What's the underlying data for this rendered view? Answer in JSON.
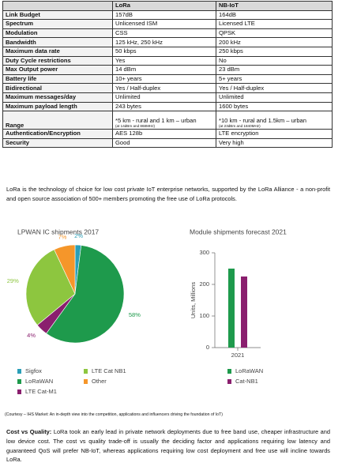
{
  "table": {
    "header": [
      "",
      "LoRa",
      "NB-IoT"
    ],
    "rows": [
      [
        "Link Budget",
        "157dB",
        "164dB"
      ],
      [
        "Spectrum",
        "Unlicensed ISM",
        "Licensed LTE"
      ],
      [
        "Modulation",
        "CSS",
        "QPSK"
      ],
      [
        "Bandwidth",
        "125 kHz, 250 kHz",
        "200 kHz"
      ],
      [
        "Maximum data rate",
        "50 kbps",
        "250 kbps"
      ],
      [
        "Duty Cycle restrictions",
        "Yes",
        "No"
      ],
      [
        "Max Output power",
        "14 dBm",
        "23 dBm"
      ],
      [
        "Battery life",
        "10+ years",
        "5+ years"
      ],
      [
        "Bidirectional",
        "Yes / Half-duplex",
        "Yes / Half-duplex"
      ],
      [
        "Maximum messages/day",
        "Unlimited",
        "Unlimited"
      ],
      [
        "Maximum payload length",
        "243 bytes",
        "1600 bytes"
      ],
      [
        "Range",
        {
          "text": "*5 km - rural and 1 km – urban",
          "note": "(at 14dBm and 868MHz)"
        },
        {
          "text": "*10 km - rural and 1.5km – urban",
          "note": "(at 23dBm and 1840MHz)"
        }
      ],
      [
        "Authentication/Encryption",
        "AES 128b",
        "LTE encryption"
      ],
      [
        "Security",
        "Good",
        "Very high"
      ]
    ]
  },
  "intro": "LoRa is the technology of choice for low cost private IoT enterprise networks, supported by the LoRa Alliance - a non-profit and open source association of 500+ members promoting the free use of LoRa protocols.",
  "chart_data": [
    {
      "type": "pie",
      "title": "LPWAN IC shipments 2017",
      "categories": [
        "Sigfox",
        "LoRaWAN",
        "LTE Cat-M1",
        "LTE Cat NB1",
        "Other"
      ],
      "values": [
        2,
        58,
        4,
        29,
        7
      ],
      "value_labels": [
        "2%",
        "58%",
        "4%",
        "29%",
        "7%"
      ],
      "colors": [
        "#2a9fb8",
        "#1e9a4c",
        "#8a1f6e",
        "#8dc63f",
        "#f5962a"
      ]
    },
    {
      "type": "bar",
      "title": "Module shipments forecast 2021",
      "y_label": "Units, Millions",
      "categories": [
        "2021"
      ],
      "series": [
        {
          "name": "LoRaWAN",
          "color": "#1e9a4c",
          "values": [
            250
          ]
        },
        {
          "name": "Cat-NB1",
          "color": "#8a1f6e",
          "values": [
            225
          ]
        }
      ],
      "ylim": [
        0,
        300
      ],
      "yticks": [
        0,
        100,
        200,
        300
      ]
    }
  ],
  "caption": "(Courtesy – IHS Market:  An in-depth view into the competition, applications and influencers driving the foundation of IoT)",
  "closing": {
    "lead": "Cost vs Quality:",
    "text": "LoRa took an early lead in private network deployments due to free band use, cheaper infrastructure and low device cost.  The cost vs quality trade-off is usually the deciding factor and applications requiring low latency and guaranteed QoS will prefer NB-IoT, whereas applications requiring low cost deployment and free use will incline towards LoRa."
  }
}
